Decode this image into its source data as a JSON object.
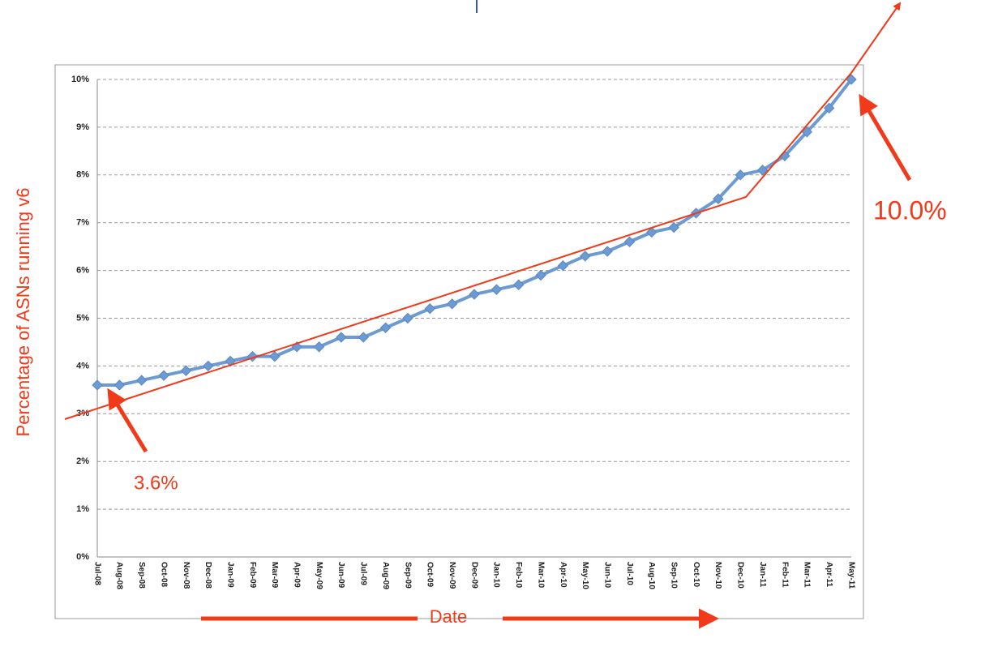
{
  "chart_data": {
    "type": "line",
    "y_label": "Percentage of ASNs running v6",
    "x_label": "Date",
    "annotations": [
      "3.6%",
      "10.0%"
    ],
    "categories": [
      "Jul-08",
      "Aug-08",
      "Sep-08",
      "Oct-08",
      "Nov-08",
      "Dec-08",
      "Jan-09",
      "Feb-09",
      "Mar-09",
      "Apr-09",
      "May-09",
      "Jun-09",
      "Jul-09",
      "Aug-09",
      "Sep-09",
      "Oct-09",
      "Nov-09",
      "Dec-09",
      "Jan-10",
      "Feb-10",
      "Mar-10",
      "Apr-10",
      "May-10",
      "Jun-10",
      "Jul-10",
      "Aug-10",
      "Sep-10",
      "Oct-10",
      "Nov-10",
      "Dec-10",
      "Jan-11",
      "Feb-11",
      "Mar-11",
      "Apr-11",
      "May-11"
    ],
    "values": [
      3.6,
      3.6,
      3.7,
      3.8,
      3.9,
      4.0,
      4.1,
      4.2,
      4.2,
      4.4,
      4.4,
      4.6,
      4.6,
      4.8,
      5.0,
      5.2,
      5.3,
      5.5,
      5.6,
      5.7,
      5.9,
      6.1,
      6.3,
      6.4,
      6.6,
      6.8,
      6.9,
      7.2,
      7.5,
      8.0,
      8.1,
      8.4,
      8.9,
      9.4,
      10.0
    ],
    "color": "#6b9bd2",
    "ylim": [
      0,
      10
    ],
    "yticks": [
      {
        "value": 0,
        "label": "0%"
      },
      {
        "value": 1,
        "label": "1%"
      },
      {
        "value": 2,
        "label": "2%"
      },
      {
        "value": 3,
        "label": "3%"
      },
      {
        "value": 4,
        "label": "4%"
      },
      {
        "value": 5,
        "label": "5%"
      },
      {
        "value": 6,
        "label": "6%"
      },
      {
        "value": 7,
        "label": "7%"
      },
      {
        "value": 8,
        "label": "8%"
      },
      {
        "value": 9,
        "label": "9%"
      },
      {
        "value": 10,
        "label": "10%"
      }
    ],
    "grid": true
  }
}
